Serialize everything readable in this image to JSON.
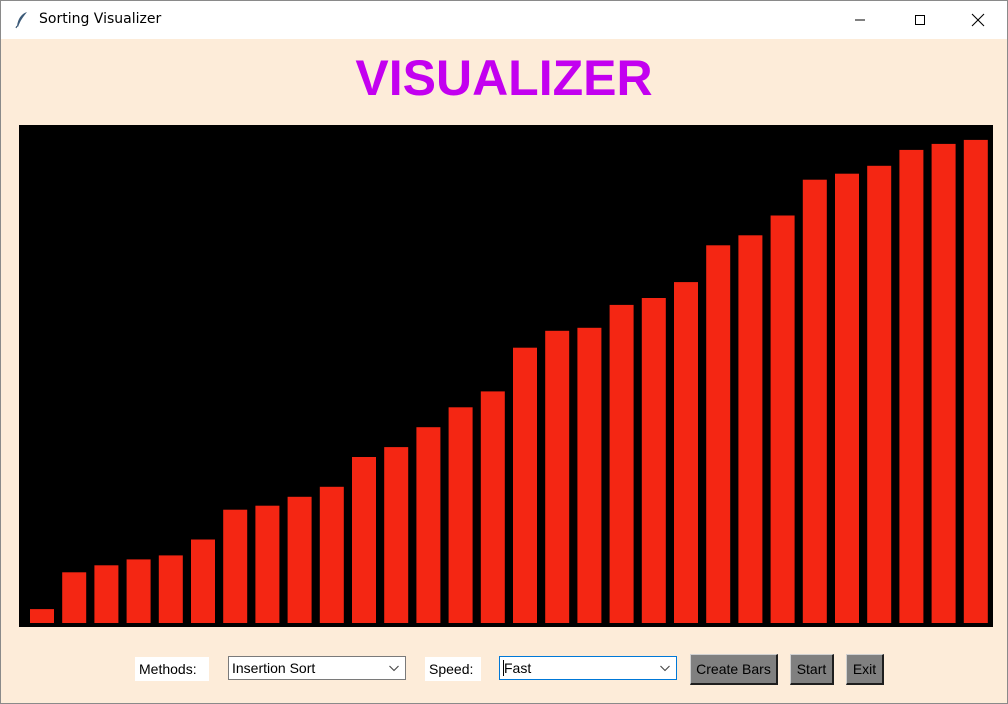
{
  "window": {
    "title": "Sorting Visualizer",
    "app_icon": "feather-icon"
  },
  "heading": "VISUALIZER",
  "colors": {
    "heading": "#c300f0",
    "bar": "#f42613",
    "canvas_bg": "#000000",
    "window_bg": "#fdecd9"
  },
  "chart_data": {
    "type": "bar",
    "values": [
      14,
      51,
      58,
      64,
      68,
      84,
      114,
      118,
      127,
      137,
      167,
      177,
      197,
      217,
      233,
      277,
      294,
      297,
      320,
      327,
      343,
      380,
      390,
      410,
      446,
      452,
      460,
      476,
      482,
      486
    ],
    "ylim": [
      0,
      500
    ]
  },
  "controls": {
    "methods_label": "Methods:",
    "methods_value": "Insertion Sort",
    "speed_label": "Speed:",
    "speed_value": "Fast",
    "create_bars_label": "Create Bars",
    "start_label": "Start",
    "exit_label": "Exit"
  }
}
